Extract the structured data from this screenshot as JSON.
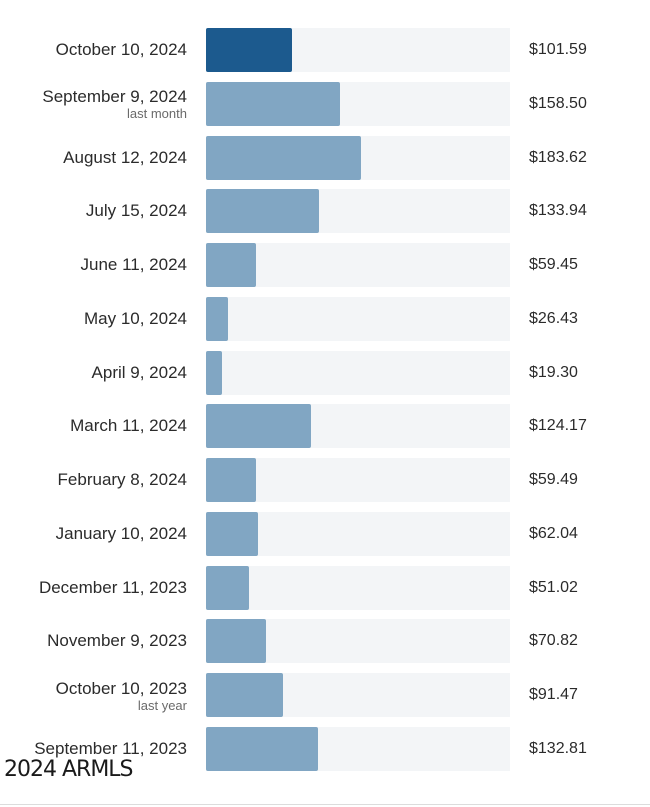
{
  "chart_data": {
    "type": "bar",
    "orientation": "horizontal",
    "xlim": [
      0,
      360
    ],
    "categories": [
      "October 10, 2024",
      "September 9, 2024",
      "August 12, 2024",
      "July 15, 2024",
      "June 11, 2024",
      "May 10, 2024",
      "April 9, 2024",
      "March 11, 2024",
      "February 8, 2024",
      "January 10, 2024",
      "December 11, 2023",
      "November 9, 2023",
      "October 10, 2023",
      "September 11, 2023"
    ],
    "sublabels": [
      "",
      "last month",
      "",
      "",
      "",
      "",
      "",
      "",
      "",
      "",
      "",
      "",
      "last year",
      ""
    ],
    "values": [
      101.59,
      158.5,
      183.62,
      133.94,
      59.45,
      26.43,
      19.3,
      124.17,
      59.49,
      62.04,
      51.02,
      70.82,
      91.47,
      132.81
    ],
    "value_labels": [
      "$101.59",
      "$158.50",
      "$183.62",
      "$133.94",
      "$59.45",
      "$26.43",
      "$19.30",
      "$124.17",
      "$59.49",
      "$62.04",
      "$51.02",
      "$70.82",
      "$91.47",
      "$132.81"
    ],
    "highlight_index": 0,
    "colors": {
      "highlight": "#1c5a8e",
      "bar": "#81a6c3",
      "track": "#f3f5f7",
      "text": "#2b2b2b",
      "subtext": "#6a6a6a"
    }
  },
  "watermark": "2024 ARMLS"
}
